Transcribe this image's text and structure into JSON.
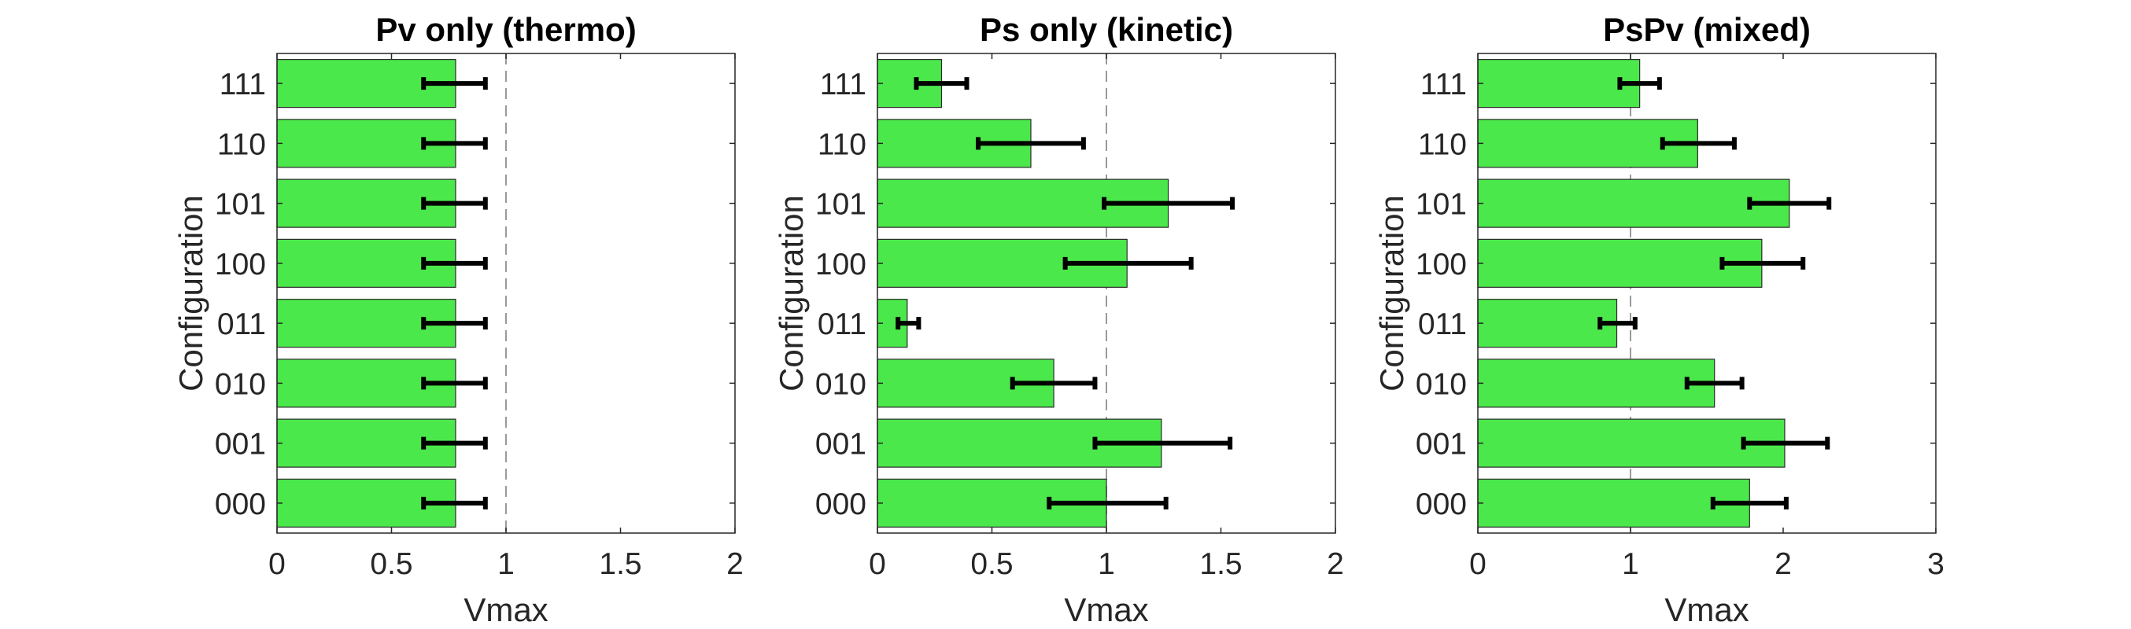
{
  "chart_data": [
    {
      "type": "bar",
      "orientation": "horizontal",
      "title": "Pv only (thermo)",
      "xlabel": "Vmax",
      "ylabel": "Configuration",
      "categories": [
        "000",
        "001",
        "010",
        "011",
        "100",
        "101",
        "110",
        "111"
      ],
      "values": [
        0.78,
        0.78,
        0.78,
        0.78,
        0.78,
        0.78,
        0.78,
        0.78
      ],
      "error_low": [
        0.64,
        0.64,
        0.64,
        0.64,
        0.64,
        0.64,
        0.64,
        0.64
      ],
      "error_high": [
        0.91,
        0.91,
        0.91,
        0.91,
        0.91,
        0.91,
        0.91,
        0.91
      ],
      "xlim": [
        0,
        2
      ],
      "xticks": [
        "0",
        "0.5",
        "1",
        "1.5",
        "2"
      ],
      "xtick_values": [
        0,
        0.5,
        1,
        1.5,
        2
      ],
      "reference_line": 1,
      "bar_color": "#4be84b",
      "grid": false
    },
    {
      "type": "bar",
      "orientation": "horizontal",
      "title": "Ps only (kinetic)",
      "xlabel": "Vmax",
      "ylabel": "Configuration",
      "categories": [
        "000",
        "001",
        "010",
        "011",
        "100",
        "101",
        "110",
        "111"
      ],
      "values": [
        1.0,
        1.24,
        0.77,
        0.13,
        1.09,
        1.27,
        0.67,
        0.28
      ],
      "error_low": [
        0.75,
        0.95,
        0.59,
        0.09,
        0.82,
        0.99,
        0.44,
        0.17
      ],
      "error_high": [
        1.26,
        1.54,
        0.95,
        0.18,
        1.37,
        1.55,
        0.9,
        0.39
      ],
      "xlim": [
        0,
        2
      ],
      "xticks": [
        "0",
        "0.5",
        "1",
        "1.5",
        "2"
      ],
      "xtick_values": [
        0,
        0.5,
        1,
        1.5,
        2
      ],
      "reference_line": 1,
      "bar_color": "#4be84b",
      "grid": false
    },
    {
      "type": "bar",
      "orientation": "horizontal",
      "title": "PsPv (mixed)",
      "xlabel": "Vmax",
      "ylabel": "Configuration",
      "categories": [
        "000",
        "001",
        "010",
        "011",
        "100",
        "101",
        "110",
        "111"
      ],
      "values": [
        1.78,
        2.01,
        1.55,
        0.91,
        1.86,
        2.04,
        1.44,
        1.06
      ],
      "error_low": [
        1.54,
        1.74,
        1.37,
        0.8,
        1.6,
        1.78,
        1.21,
        0.93
      ],
      "error_high": [
        2.02,
        2.29,
        1.73,
        1.03,
        2.13,
        2.3,
        1.68,
        1.19
      ],
      "xlim": [
        0,
        3
      ],
      "xticks": [
        "0",
        "1",
        "2",
        "3"
      ],
      "xtick_values": [
        0,
        1,
        2,
        3
      ],
      "reference_line": 1,
      "bar_color": "#4be84b",
      "grid": false
    }
  ]
}
